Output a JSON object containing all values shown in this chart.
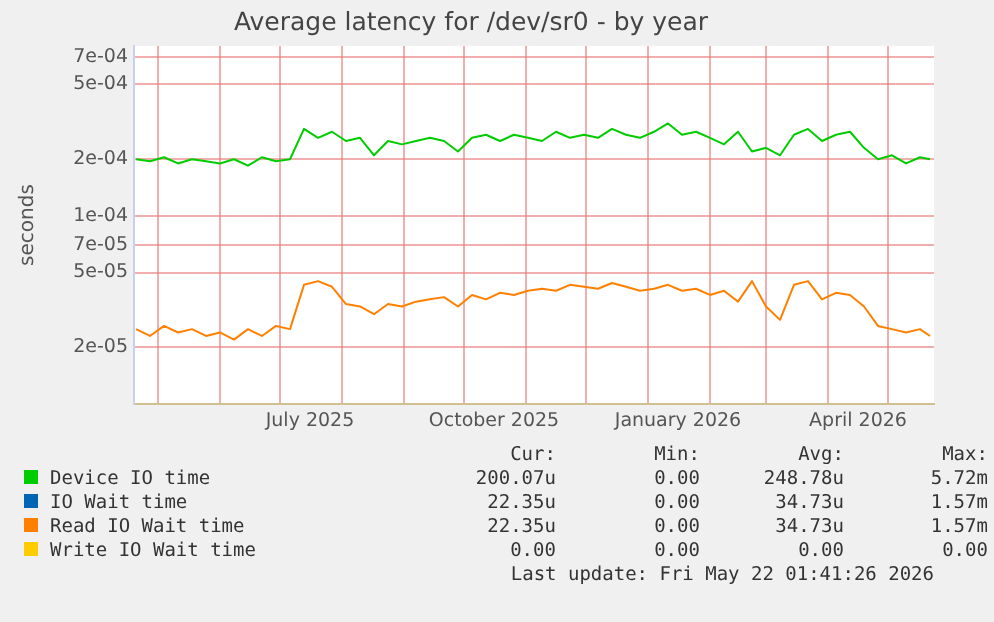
{
  "chart_data": {
    "type": "line",
    "title": "Average latency for /dev/sr0 - by year",
    "ylabel": "seconds",
    "x": [
      "2025-04-20",
      "2025-04-27",
      "2025-05-04",
      "2025-05-11",
      "2025-05-18",
      "2025-05-25",
      "2025-06-01",
      "2025-06-08",
      "2025-06-15",
      "2025-06-22",
      "2025-06-29",
      "2025-07-06",
      "2025-07-13",
      "2025-07-20",
      "2025-07-27",
      "2025-08-03",
      "2025-08-10",
      "2025-08-17",
      "2025-08-24",
      "2025-08-31",
      "2025-09-07",
      "2025-09-14",
      "2025-09-21",
      "2025-09-28",
      "2025-10-05",
      "2025-10-12",
      "2025-10-19",
      "2025-10-26",
      "2025-11-02",
      "2025-11-09",
      "2025-11-16",
      "2025-11-23",
      "2025-11-30",
      "2025-12-07",
      "2025-12-14",
      "2025-12-21",
      "2025-12-28",
      "2026-01-04",
      "2026-01-11",
      "2026-01-18",
      "2026-01-25",
      "2026-02-01",
      "2026-02-08",
      "2026-02-15",
      "2026-02-22",
      "2026-03-01",
      "2026-03-08",
      "2026-03-15",
      "2026-03-22",
      "2026-03-29",
      "2026-04-05",
      "2026-04-12",
      "2026-04-19",
      "2026-04-26",
      "2026-05-03",
      "2026-05-10",
      "2026-05-17",
      "2026-05-22"
    ],
    "series": [
      {
        "name": "Device IO time",
        "color": "#00cc00",
        "values": [
          0.0002,
          0.000195,
          0.000205,
          0.00019,
          0.0002,
          0.000195,
          0.00019,
          0.0002,
          0.000185,
          0.000205,
          0.000195,
          0.0002,
          0.00029,
          0.00026,
          0.00028,
          0.00025,
          0.00026,
          0.00021,
          0.00025,
          0.00024,
          0.00025,
          0.00026,
          0.00025,
          0.00022,
          0.00026,
          0.00027,
          0.00025,
          0.00027,
          0.00026,
          0.00025,
          0.00028,
          0.00026,
          0.00027,
          0.00026,
          0.00029,
          0.00027,
          0.00026,
          0.00028,
          0.00031,
          0.00027,
          0.00028,
          0.00026,
          0.00024,
          0.00028,
          0.00022,
          0.00023,
          0.00021,
          0.00027,
          0.00029,
          0.00025,
          0.00027,
          0.00028,
          0.00023,
          0.0002,
          0.00021,
          0.00019,
          0.000205,
          0.0002
        ]
      },
      {
        "name": "IO Wait time",
        "color": "#0066b3",
        "values": [
          null,
          null,
          null,
          null,
          null,
          null,
          null,
          null,
          null,
          null,
          null,
          null,
          null,
          null,
          null,
          null,
          null,
          null,
          null,
          null,
          null,
          null,
          null,
          null,
          null,
          null,
          null,
          null,
          null,
          null,
          null,
          null,
          null,
          null,
          null,
          null,
          null,
          null,
          null,
          null,
          null,
          null,
          null,
          null,
          null,
          null,
          null,
          null,
          null,
          null,
          null,
          null,
          null,
          null,
          null,
          null,
          null,
          null
        ]
      },
      {
        "name": "Read IO Wait time",
        "color": "#ff8000",
        "values": [
          2.5e-05,
          2.3e-05,
          2.6e-05,
          2.4e-05,
          2.5e-05,
          2.3e-05,
          2.4e-05,
          2.2e-05,
          2.5e-05,
          2.3e-05,
          2.6e-05,
          2.5e-05,
          4.3e-05,
          4.5e-05,
          4.2e-05,
          3.4e-05,
          3.3e-05,
          3e-05,
          3.4e-05,
          3.3e-05,
          3.5e-05,
          3.6e-05,
          3.7e-05,
          3.3e-05,
          3.8e-05,
          3.6e-05,
          3.9e-05,
          3.8e-05,
          4e-05,
          4.1e-05,
          4e-05,
          4.3e-05,
          4.2e-05,
          4.1e-05,
          4.4e-05,
          4.2e-05,
          4e-05,
          4.1e-05,
          4.3e-05,
          4e-05,
          4.1e-05,
          3.8e-05,
          4e-05,
          3.5e-05,
          4.5e-05,
          3.3e-05,
          2.8e-05,
          4.3e-05,
          4.5e-05,
          3.6e-05,
          3.9e-05,
          3.8e-05,
          3.3e-05,
          2.6e-05,
          2.5e-05,
          2.4e-05,
          2.5e-05,
          2.3e-05
        ]
      },
      {
        "name": "Write IO Wait time",
        "color": "#ffcc00",
        "values": [
          null,
          null,
          null,
          null,
          null,
          null,
          null,
          null,
          null,
          null,
          null,
          null,
          null,
          null,
          null,
          null,
          null,
          null,
          null,
          null,
          null,
          null,
          null,
          null,
          null,
          null,
          null,
          null,
          null,
          null,
          null,
          null,
          null,
          null,
          null,
          null,
          null,
          null,
          null,
          null,
          null,
          null,
          null,
          null,
          null,
          null,
          null,
          null,
          null,
          null,
          null,
          null,
          null,
          null,
          null,
          null,
          null,
          null
        ]
      }
    ],
    "log": "y",
    "ylim": [
      1e-05,
      0.0008
    ],
    "yticks": [
      {
        "value": 2e-05,
        "label": "2e-05"
      },
      {
        "value": 5e-05,
        "label": "5e-05"
      },
      {
        "value": 7e-05,
        "label": "7e-05"
      },
      {
        "value": 0.0001,
        "label": "1e-04"
      },
      {
        "value": 0.0002,
        "label": "2e-04"
      },
      {
        "value": 0.0005,
        "label": "5e-04"
      },
      {
        "value": 0.0007,
        "label": "7e-04"
      }
    ],
    "xlim": [
      "2025-04-19",
      "2026-05-24"
    ],
    "xticks": [
      {
        "value": "2025-05-01",
        "label": null
      },
      {
        "value": "2025-06-01",
        "label": null
      },
      {
        "value": "2025-07-01",
        "label": null
      },
      {
        "value": "2025-07-16",
        "label": "July 2025"
      },
      {
        "value": "2025-08-01",
        "label": null
      },
      {
        "value": "2025-09-01",
        "label": null
      },
      {
        "value": "2025-10-01",
        "label": null
      },
      {
        "value": "2025-10-16",
        "label": "October 2025"
      },
      {
        "value": "2025-11-01",
        "label": null
      },
      {
        "value": "2025-12-01",
        "label": null
      },
      {
        "value": "2026-01-01",
        "label": null
      },
      {
        "value": "2026-01-16",
        "label": "January 2026"
      },
      {
        "value": "2026-02-01",
        "label": null
      },
      {
        "value": "2026-03-01",
        "label": null
      },
      {
        "value": "2026-04-01",
        "label": null
      },
      {
        "value": "2026-04-16",
        "label": "April 2026"
      },
      {
        "value": "2026-05-01",
        "label": null
      }
    ],
    "grid": true,
    "legend": "bottom",
    "marker": "none",
    "line_style": "solid",
    "annotations": [
      "Cur:",
      "Min:",
      "Avg:",
      "Max:",
      "200.07u",
      "0.00",
      "248.78u",
      "5.72m",
      "22.35u",
      "0.00",
      "34.73u",
      "1.57m",
      "22.35u",
      "0.00",
      "34.73u",
      "1.57m",
      "0.00",
      "0.00",
      "0.00",
      "0.00",
      "Last update: Fri May 22 01:41:26 2026"
    ]
  }
}
